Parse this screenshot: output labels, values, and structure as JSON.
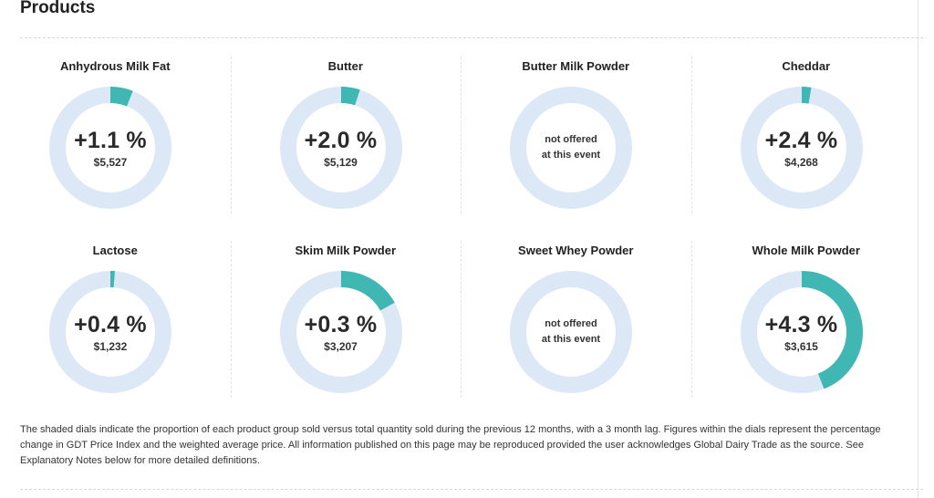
{
  "section_title": "Products",
  "colors": {
    "ring": "#dde8f6",
    "fill": "#40b7b2"
  },
  "products": [
    {
      "name": "Anhydrous Milk Fat",
      "change": "+1.1 %",
      "price": "$5,527",
      "share": 0.06,
      "offered": true
    },
    {
      "name": "Butter",
      "change": "+2.0 %",
      "price": "$5,129",
      "share": 0.05,
      "offered": true
    },
    {
      "name": "Butter Milk Powder",
      "offered": false,
      "share": 0,
      "not_offered_line1": "not offered",
      "not_offered_line2": "at this event"
    },
    {
      "name": "Cheddar",
      "change": "+2.4 %",
      "price": "$4,268",
      "share": 0.025,
      "offered": true
    },
    {
      "name": "Lactose",
      "change": "+0.4 %",
      "price": "$1,232",
      "share": 0.012,
      "offered": true
    },
    {
      "name": "Skim Milk Powder",
      "change": "+0.3 %",
      "price": "$3,207",
      "share": 0.17,
      "offered": true
    },
    {
      "name": "Sweet Whey Powder",
      "offered": false,
      "share": 0,
      "not_offered_line1": "not offered",
      "not_offered_line2": "at this event"
    },
    {
      "name": "Whole Milk Powder",
      "change": "+4.3 %",
      "price": "$3,615",
      "share": 0.44,
      "offered": true
    }
  ],
  "footnote": "The shaded dials indicate the proportion of each product group sold versus total quantity sold during the previous 12 months, with a 3 month lag. Figures within the dials represent the percentage change in GDT Price Index and the weighted average price. All information published on this page may be reproduced provided the user acknowledges Global Dairy Trade as the source. See Explanatory Notes below for more detailed definitions."
}
